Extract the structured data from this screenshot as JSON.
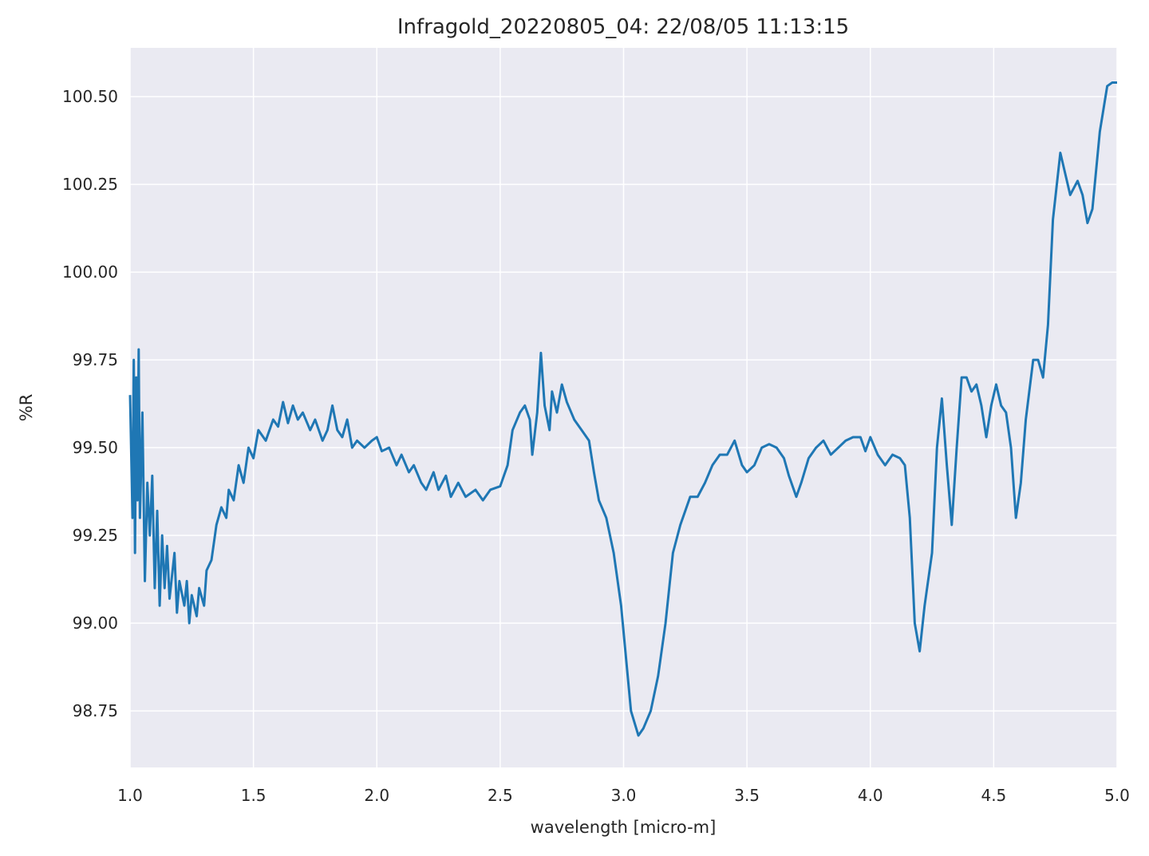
{
  "chart_data": {
    "type": "line",
    "title": "Infragold_20220805_04:  22/08/05 11:13:15",
    "x_label": "wavelength [micro-m]",
    "y_label": "%R",
    "grid": true,
    "xlim": [
      1.0,
      5.0
    ],
    "xticks": [
      {
        "value": 1,
        "label": "1.0"
      },
      1.5,
      {
        "value": 2,
        "label": "2.0"
      },
      2.5,
      {
        "value": 3,
        "label": "3.0"
      },
      3.5,
      {
        "value": 4,
        "label": "4.0"
      },
      4.5,
      {
        "value": 5,
        "label": "5.0"
      }
    ],
    "ylim": [
      98.589,
      100.639
    ],
    "yticks": [
      98.75,
      {
        "value": 99,
        "label": "99.00"
      },
      99.25,
      {
        "value": 99.5,
        "label": "99.50"
      },
      99.75,
      {
        "value": 100,
        "label": "100.00"
      },
      100.25,
      {
        "value": 100.5,
        "label": "100.50"
      }
    ],
    "x": [
      1.0,
      1.01,
      1.015,
      1.02,
      1.025,
      1.03,
      1.035,
      1.04,
      1.05,
      1.06,
      1.07,
      1.08,
      1.09,
      1.1,
      1.11,
      1.12,
      1.13,
      1.14,
      1.15,
      1.16,
      1.18,
      1.19,
      1.2,
      1.22,
      1.23,
      1.24,
      1.25,
      1.27,
      1.28,
      1.3,
      1.31,
      1.33,
      1.35,
      1.37,
      1.39,
      1.4,
      1.42,
      1.44,
      1.46,
      1.48,
      1.5,
      1.52,
      1.55,
      1.58,
      1.6,
      1.62,
      1.64,
      1.66,
      1.68,
      1.7,
      1.73,
      1.75,
      1.78,
      1.8,
      1.82,
      1.84,
      1.86,
      1.88,
      1.9,
      1.92,
      1.95,
      1.98,
      2.0,
      2.02,
      2.05,
      2.08,
      2.1,
      2.13,
      2.15,
      2.18,
      2.2,
      2.23,
      2.25,
      2.28,
      2.3,
      2.33,
      2.36,
      2.4,
      2.43,
      2.46,
      2.5,
      2.53,
      2.55,
      2.58,
      2.6,
      2.62,
      2.63,
      2.65,
      2.665,
      2.68,
      2.7,
      2.71,
      2.73,
      2.75,
      2.77,
      2.8,
      2.83,
      2.86,
      2.88,
      2.9,
      2.93,
      2.96,
      2.99,
      3.01,
      3.03,
      3.06,
      3.08,
      3.11,
      3.14,
      3.17,
      3.2,
      3.23,
      3.27,
      3.3,
      3.33,
      3.36,
      3.39,
      3.42,
      3.45,
      3.48,
      3.5,
      3.53,
      3.56,
      3.59,
      3.62,
      3.65,
      3.67,
      3.7,
      3.72,
      3.75,
      3.78,
      3.81,
      3.84,
      3.87,
      3.9,
      3.93,
      3.96,
      3.98,
      4.0,
      4.03,
      4.06,
      4.09,
      4.12,
      4.14,
      4.16,
      4.18,
      4.2,
      4.22,
      4.25,
      4.27,
      4.29,
      4.31,
      4.33,
      4.35,
      4.37,
      4.39,
      4.41,
      4.43,
      4.45,
      4.47,
      4.49,
      4.51,
      4.53,
      4.55,
      4.57,
      4.59,
      4.61,
      4.63,
      4.66,
      4.68,
      4.7,
      4.72,
      4.74,
      4.77,
      4.79,
      4.81,
      4.84,
      4.86,
      4.88,
      4.9,
      4.93,
      4.96,
      4.98,
      5.0
    ],
    "series": [
      {
        "name": "%R",
        "color": "#1f77b4",
        "values": [
          99.65,
          99.3,
          99.75,
          99.2,
          99.7,
          99.35,
          99.78,
          99.3,
          99.6,
          99.12,
          99.4,
          99.25,
          99.42,
          99.1,
          99.32,
          99.05,
          99.25,
          99.1,
          99.22,
          99.07,
          99.2,
          99.03,
          99.12,
          99.05,
          99.12,
          99.0,
          99.08,
          99.02,
          99.1,
          99.05,
          99.15,
          99.18,
          99.28,
          99.33,
          99.3,
          99.38,
          99.35,
          99.45,
          99.4,
          99.5,
          99.47,
          99.55,
          99.52,
          99.58,
          99.56,
          99.63,
          99.57,
          99.62,
          99.58,
          99.6,
          99.55,
          99.58,
          99.52,
          99.55,
          99.62,
          99.55,
          99.53,
          99.58,
          99.5,
          99.52,
          99.5,
          99.52,
          99.53,
          99.49,
          99.5,
          99.45,
          99.48,
          99.43,
          99.45,
          99.4,
          99.38,
          99.43,
          99.38,
          99.42,
          99.36,
          99.4,
          99.36,
          99.38,
          99.35,
          99.38,
          99.39,
          99.45,
          99.55,
          99.6,
          99.62,
          99.58,
          99.48,
          99.6,
          99.77,
          99.62,
          99.55,
          99.66,
          99.6,
          99.68,
          99.63,
          99.58,
          99.55,
          99.52,
          99.43,
          99.35,
          99.3,
          99.2,
          99.05,
          98.9,
          98.75,
          98.68,
          98.7,
          98.75,
          98.85,
          99.0,
          99.2,
          99.28,
          99.36,
          99.36,
          99.4,
          99.45,
          99.48,
          99.48,
          99.52,
          99.45,
          99.43,
          99.45,
          99.5,
          99.51,
          99.5,
          99.47,
          99.42,
          99.36,
          99.4,
          99.47,
          99.5,
          99.52,
          99.48,
          99.5,
          99.52,
          99.53,
          99.53,
          99.49,
          99.53,
          99.48,
          99.45,
          99.48,
          99.47,
          99.45,
          99.3,
          99.0,
          98.92,
          99.05,
          99.2,
          99.5,
          99.64,
          99.45,
          99.28,
          99.5,
          99.7,
          99.7,
          99.66,
          99.68,
          99.62,
          99.53,
          99.62,
          99.68,
          99.62,
          99.6,
          99.5,
          99.3,
          99.4,
          99.58,
          99.75,
          99.75,
          99.7,
          99.85,
          100.15,
          100.34,
          100.28,
          100.22,
          100.26,
          100.22,
          100.14,
          100.18,
          100.4,
          100.53,
          100.54,
          100.54
        ]
      }
    ]
  }
}
